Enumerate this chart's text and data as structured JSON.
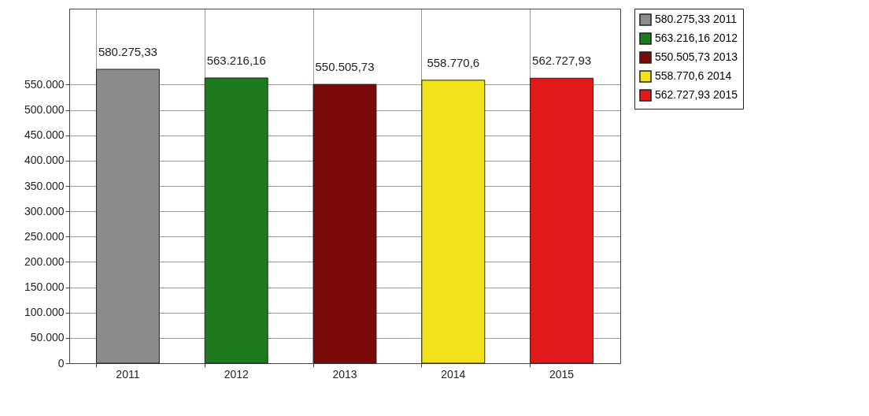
{
  "chart_data": {
    "type": "bar",
    "categories": [
      "2011",
      "2012",
      "2013",
      "2014",
      "2015"
    ],
    "series": [
      {
        "name": "580.275,33 2011",
        "color": "#8c8c8c",
        "values": [
          580275.33,
          null,
          null,
          null,
          null
        ],
        "value_labels": [
          "580.275,33",
          null,
          null,
          null,
          null
        ]
      },
      {
        "name": "563.216,16 2012",
        "color": "#1e7a1e",
        "values": [
          null,
          563216.16,
          null,
          null,
          null
        ],
        "value_labels": [
          null,
          "563.216,16",
          null,
          null,
          null
        ]
      },
      {
        "name": "550.505,73 2013",
        "color": "#7a0a0a",
        "values": [
          null,
          null,
          550505.73,
          null,
          null
        ],
        "value_labels": [
          null,
          null,
          "550.505,73",
          null,
          null
        ]
      },
      {
        "name": "558.770,6 2014",
        "color": "#f2e21c",
        "values": [
          null,
          null,
          null,
          558770.6,
          null
        ],
        "value_labels": [
          null,
          null,
          null,
          "558.770,6",
          null
        ]
      },
      {
        "name": "562.727,93 2015",
        "color": "#e01a1a",
        "values": [
          null,
          null,
          null,
          null,
          562727.93
        ],
        "value_labels": [
          null,
          null,
          null,
          null,
          "562.727,93"
        ]
      }
    ],
    "ylim": [
      0,
      700000
    ],
    "yticks": [
      {
        "value": 0,
        "label": "0"
      },
      {
        "value": 50000,
        "label": "50.000"
      },
      {
        "value": 100000,
        "label": "100.000"
      },
      {
        "value": 150000,
        "label": "150.000"
      },
      {
        "value": 200000,
        "label": "200.000"
      },
      {
        "value": 250000,
        "label": "250.000"
      },
      {
        "value": 300000,
        "label": "300.000"
      },
      {
        "value": 350000,
        "label": "350.000"
      },
      {
        "value": 400000,
        "label": "400.000"
      },
      {
        "value": 450000,
        "label": "450.000"
      },
      {
        "value": 500000,
        "label": "500.000"
      },
      {
        "value": 550000,
        "label": "550.000"
      }
    ],
    "grid": true,
    "legend": "top right"
  }
}
